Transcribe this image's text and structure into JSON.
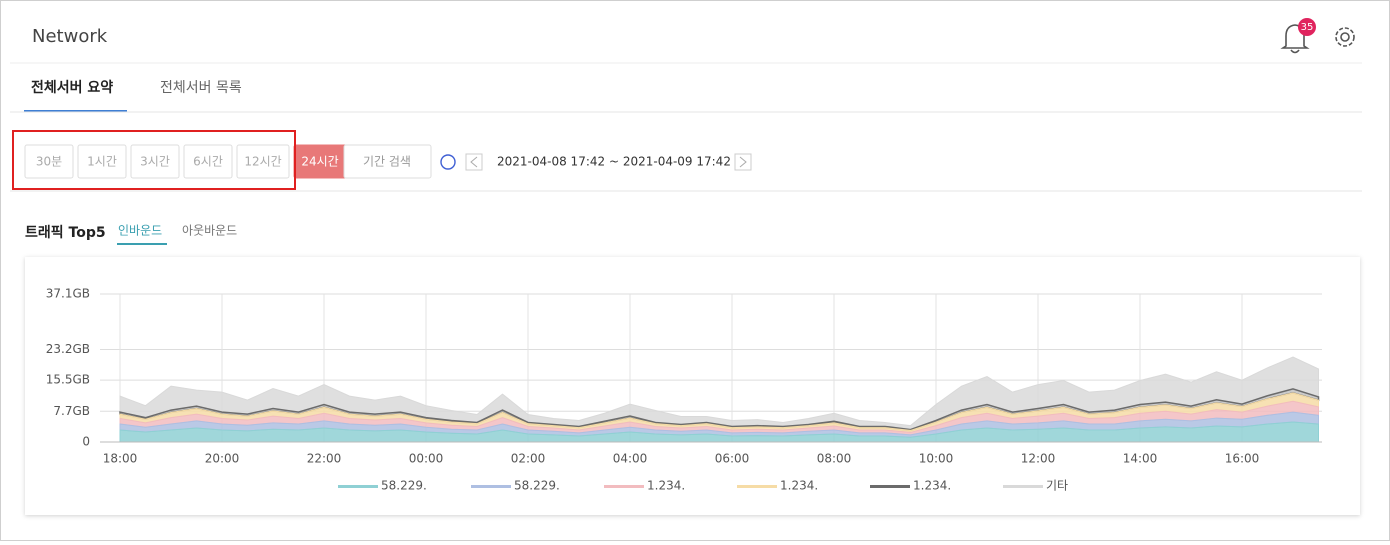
{
  "header": {
    "title": "Network",
    "badge": "35"
  },
  "tabs": [
    "전체서버 요약",
    "전체서버 목록"
  ],
  "range_buttons": [
    "30분",
    "1시간",
    "3시간",
    "6시간",
    "12시간",
    "24시간"
  ],
  "period_search": "기간 검색",
  "date_range": "2021-04-08 17:42 ~ 2021-04-09 17:42",
  "section": {
    "title": "트래픽 Top5",
    "subtabs": [
      "인바운드",
      "아웃바운드"
    ]
  },
  "chart_data": {
    "type": "stacked_area",
    "categories": [
      "18:00",
      null,
      null,
      null,
      "20:00",
      null,
      null,
      null,
      "22:00",
      null,
      null,
      null,
      "00:00",
      null,
      null,
      null,
      "02:00",
      null,
      null,
      null,
      "04:00",
      null,
      null,
      null,
      "06:00",
      null,
      null,
      null,
      "08:00",
      null,
      null,
      null,
      "10:00",
      null,
      null,
      null,
      "12:00",
      null,
      null,
      null,
      "14:00",
      null,
      null,
      null,
      "16:00",
      null,
      null,
      null
    ],
    "ylim": [
      0,
      37.1
    ],
    "yticks": [
      0,
      {
        "value": 7.7,
        "label": "7.7GB"
      },
      {
        "value": 15.5,
        "label": "15.5GB"
      },
      {
        "value": 23.2,
        "label": "23.2GB"
      },
      {
        "value": 37.1,
        "label": "37.1GB"
      }
    ],
    "grid": true,
    "series": [
      {
        "name": "58.229.",
        "color": "#8fd0d4",
        "values": [
          3,
          2.5,
          3,
          3.5,
          3,
          2.8,
          3.2,
          3,
          3.5,
          3,
          2.8,
          3,
          2.5,
          2.2,
          2,
          3,
          2,
          1.8,
          1.5,
          2,
          2.5,
          2,
          1.8,
          2,
          1.5,
          1.6,
          1.5,
          1.8,
          2,
          1.5,
          1.5,
          1.2,
          2,
          3,
          3.5,
          3,
          3.2,
          3.5,
          3,
          3,
          3.5,
          3.8,
          3.5,
          4,
          3.8,
          4.5,
          5,
          4.5
        ]
      },
      {
        "name": "58.229.",
        "color": "#aebfe2",
        "values": [
          1.5,
          1.2,
          1.5,
          1.8,
          1.5,
          1.4,
          1.6,
          1.5,
          1.8,
          1.5,
          1.4,
          1.5,
          1.2,
          1,
          1,
          1.5,
          1,
          0.9,
          0.8,
          1,
          1.2,
          1,
          0.9,
          1,
          0.8,
          0.8,
          0.8,
          0.9,
          1,
          0.8,
          0.8,
          0.6,
          1,
          1.5,
          1.8,
          1.5,
          1.6,
          1.8,
          1.5,
          1.5,
          1.8,
          1.9,
          1.8,
          2,
          1.9,
          2.2,
          2.5,
          2.2
        ]
      },
      {
        "name": "1.234.",
        "color": "#f2bcbf",
        "values": [
          1.4,
          1.1,
          1.6,
          1.7,
          1.4,
          1.3,
          1.7,
          1.4,
          1.9,
          1.4,
          1.3,
          1.4,
          1.1,
          1,
          0.9,
          1.6,
          0.9,
          0.8,
          0.7,
          1,
          1.3,
          0.9,
          0.8,
          0.9,
          0.7,
          0.8,
          0.7,
          0.8,
          1,
          0.7,
          0.7,
          0.6,
          1.1,
          1.6,
          1.9,
          1.4,
          1.7,
          1.9,
          1.4,
          1.6,
          1.9,
          2,
          1.7,
          2.1,
          1.8,
          2.3,
          2.7,
          2.1
        ]
      },
      {
        "name": "1.234.",
        "color": "#f6dca6",
        "values": [
          1.1,
          0.9,
          1.3,
          1.4,
          1.1,
          1,
          1.3,
          1.1,
          1.5,
          1.1,
          1,
          1.1,
          0.9,
          0.8,
          0.7,
          1.3,
          0.7,
          0.6,
          0.6,
          0.8,
          1,
          0.7,
          0.6,
          0.7,
          0.6,
          0.6,
          0.6,
          0.6,
          0.8,
          0.6,
          0.6,
          0.5,
          0.9,
          1.3,
          1.5,
          1.1,
          1.3,
          1.5,
          1.1,
          1.3,
          1.5,
          1.6,
          1.4,
          1.7,
          1.4,
          1.8,
          2.1,
          1.7
        ]
      },
      {
        "name": "1.234.",
        "color": "#6b6b6b",
        "values": [
          0.5,
          0.4,
          0.6,
          0.6,
          0.5,
          0.5,
          0.6,
          0.5,
          0.7,
          0.5,
          0.5,
          0.5,
          0.4,
          0.4,
          0.3,
          0.6,
          0.3,
          0.3,
          0.3,
          0.4,
          0.5,
          0.3,
          0.3,
          0.3,
          0.3,
          0.3,
          0.3,
          0.3,
          0.4,
          0.3,
          0.3,
          0.2,
          0.4,
          0.6,
          0.7,
          0.5,
          0.6,
          0.7,
          0.5,
          0.6,
          0.7,
          0.7,
          0.6,
          0.8,
          0.6,
          0.8,
          1,
          0.8
        ]
      },
      {
        "name": "기타",
        "color": "#d9d9d9",
        "values": [
          4,
          3,
          6,
          4,
          5,
          3.5,
          5,
          4,
          5,
          4,
          3.5,
          4,
          3,
          2.5,
          2,
          4,
          2,
          1.5,
          1.5,
          2,
          3,
          3,
          2,
          1.5,
          1.5,
          1.5,
          1,
          1.5,
          2,
          1.5,
          1,
          1,
          4,
          6,
          7,
          5,
          6,
          6,
          5,
          5,
          6,
          7,
          6,
          7,
          6,
          7,
          8,
          7
        ]
      }
    ]
  }
}
